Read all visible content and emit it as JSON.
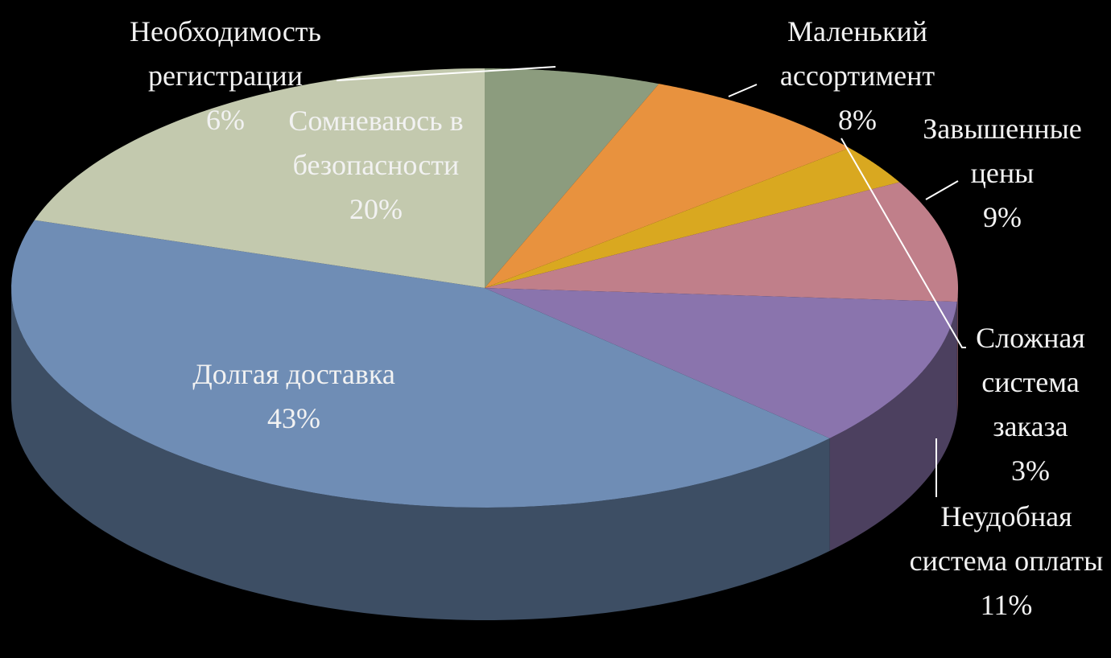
{
  "chart_data": {
    "type": "pie",
    "categories": [
      "Необходимость регистрации",
      "Маленький ассортимент",
      "Сложная система заказа",
      "Завышенные цены",
      "Неудобная система оплаты",
      "Долгая доставка",
      "Сомневаюсь в безопасности"
    ],
    "values": [
      6,
      8,
      3,
      9,
      11,
      43,
      20
    ],
    "value_labels": [
      "6%",
      "8%",
      "3%",
      "9%",
      "11%",
      "43%",
      "20%"
    ],
    "colors": [
      "#8c9c7e",
      "#e8923e",
      "#d9a820",
      "#c07f8a",
      "#8a74ad",
      "#6f8db5",
      "#c3c9ae"
    ]
  }
}
